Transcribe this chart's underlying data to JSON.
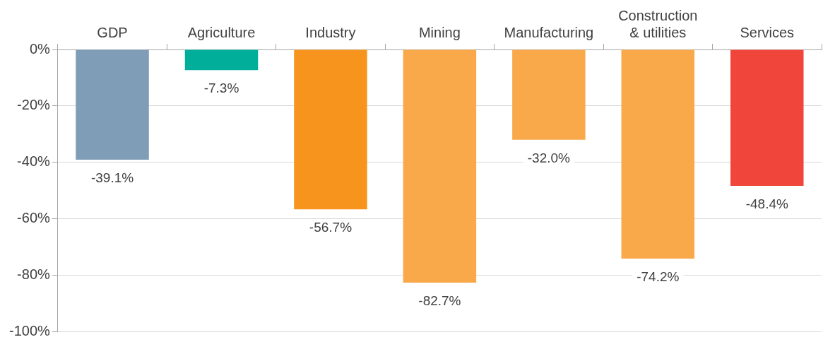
{
  "chart_data": {
    "type": "bar",
    "categories": [
      "GDP",
      "Agriculture",
      "Industry",
      "Mining",
      "Manufacturing",
      "Construction & utilities",
      "Services"
    ],
    "values": [
      -39.1,
      -7.3,
      -56.7,
      -82.7,
      -32.0,
      -74.2,
      -48.4
    ],
    "colors": [
      "#7f9db6",
      "#00ae9a",
      "#f7941e",
      "#f9a94a",
      "#f9a94a",
      "#f9a94a",
      "#f0453a"
    ],
    "ylim": [
      -100,
      0
    ],
    "yticks": [
      {
        "value": -100,
        "label": "-100%"
      },
      {
        "value": -80,
        "label": "-80%"
      },
      {
        "value": -60,
        "label": "-60%"
      },
      {
        "value": -40,
        "label": "-40%"
      },
      {
        "value": -20,
        "label": "-20%"
      },
      {
        "value": 0,
        "label": "0%"
      }
    ],
    "grid": "y",
    "data_labels": true,
    "value_labels": [
      "-39.1%",
      "-7.3%",
      "-56.7%",
      "-82.7%",
      "-32.0%",
      "-74.2%",
      "-48.4%"
    ]
  }
}
